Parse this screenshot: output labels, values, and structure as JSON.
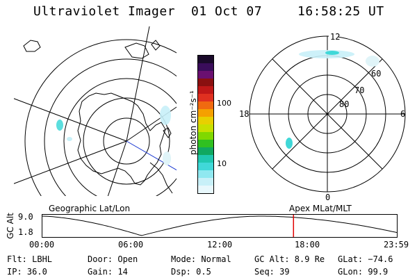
{
  "header": {
    "title": "Ultraviolet Imager",
    "date": "01 Oct 07",
    "time": "16:58:25 UT"
  },
  "colorbar": {
    "unit_label": "photon cm⁻²s⁻¹",
    "ticks": [
      "100",
      "10"
    ],
    "colors": [
      "#1a0a2a",
      "#3a0d5a",
      "#6a1070",
      "#8a1010",
      "#c01818",
      "#e03020",
      "#f06a10",
      "#f5a000",
      "#e8d000",
      "#c8e000",
      "#80d800",
      "#30c020",
      "#10a860",
      "#20c8b0",
      "#40d8d8",
      "#90e8f0",
      "#c8f0f8",
      "#e8f8fc"
    ]
  },
  "left_map": {
    "label": "Geographic Lat/Lon"
  },
  "right_map": {
    "label": "Apex MLat/MLT",
    "mlt_labels": [
      "12",
      "18",
      "6",
      "0"
    ],
    "lat_labels": [
      "60",
      "70",
      "80"
    ]
  },
  "timeline": {
    "axis_label": "GC Alt",
    "y_ticks": [
      "9.0",
      "1.8"
    ],
    "x_ticks": [
      "00:00",
      "06:00",
      "12:00",
      "18:00",
      "23:59"
    ],
    "current_fraction": 0.7076,
    "marker_color": "#e00000"
  },
  "footer": {
    "filter": "Flt: LBHL",
    "door": "Door: Open",
    "mode": "Mode: Normal",
    "gc_alt": "GC Alt: 8.9 Re",
    "glat": "GLat: −74.6",
    "ip": "IP: 36.0",
    "gain": "Gain: 14",
    "dsp": "Dsp:    0.5",
    "seq": "Seq: 39",
    "glon": "GLon:  99.9"
  }
}
